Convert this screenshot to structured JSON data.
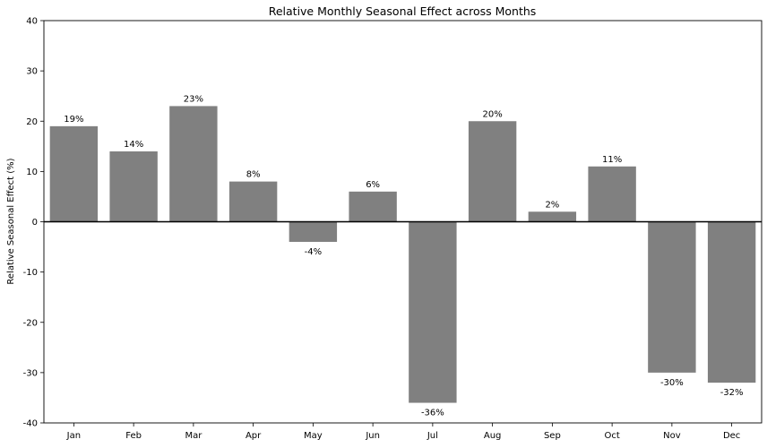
{
  "chart_data": {
    "type": "bar",
    "title": "Relative Monthly Seasonal Effect across Months",
    "xlabel": "",
    "ylabel": "Relative Seasonal Effect (%)",
    "ylim": [
      -40,
      40
    ],
    "yticks": [
      -40,
      -30,
      -20,
      -10,
      0,
      10,
      20,
      30,
      40
    ],
    "categories": [
      "Jan",
      "Feb",
      "Mar",
      "Apr",
      "May",
      "Jun",
      "Jul",
      "Aug",
      "Sep",
      "Oct",
      "Nov",
      "Dec"
    ],
    "values": [
      19,
      14,
      23,
      8,
      -4,
      6,
      -36,
      20,
      2,
      11,
      -30,
      -32
    ],
    "data_labels": [
      "19%",
      "14%",
      "23%",
      "8%",
      "-4%",
      "6%",
      "-36%",
      "20%",
      "2%",
      "11%",
      "-30%",
      "-32%"
    ],
    "bar_color": "#808080",
    "zero_line": true,
    "grid": false,
    "legend": false
  }
}
